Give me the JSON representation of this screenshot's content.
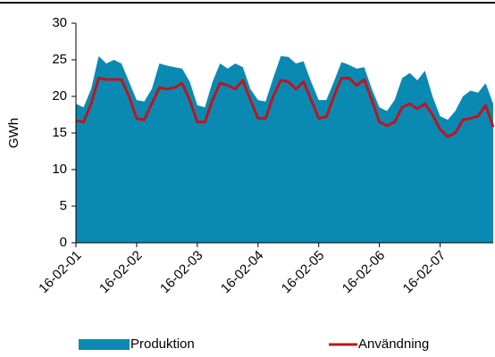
{
  "chart_data": {
    "type": "area-line",
    "ylabel": "GWh",
    "categories": [
      "16-02-01",
      null,
      null,
      null,
      null,
      null,
      null,
      null,
      "16-02-02",
      null,
      null,
      null,
      null,
      null,
      null,
      null,
      "16-02-03",
      null,
      null,
      null,
      null,
      null,
      null,
      null,
      "16-02-04",
      null,
      null,
      null,
      null,
      null,
      null,
      null,
      "16-02-05",
      null,
      null,
      null,
      null,
      null,
      null,
      null,
      "16-02-06",
      null,
      null,
      null,
      null,
      null,
      null,
      null,
      "16-02-07",
      null,
      null,
      null,
      null,
      null,
      null,
      null
    ],
    "series": [
      {
        "name": "Produktion",
        "kind": "area",
        "color": "#0a8ab2",
        "values": [
          19,
          18.5,
          21,
          25.5,
          24.5,
          25,
          24.5,
          22,
          19.5,
          19.3,
          21,
          24.5,
          24.2,
          24,
          23.8,
          22,
          18.8,
          18.5,
          22,
          24.5,
          23.8,
          24.5,
          24,
          21,
          19.5,
          19.3,
          22.5,
          25.5,
          25.4,
          24.5,
          24.8,
          22,
          19.5,
          19.5,
          22,
          24.7,
          24.3,
          23.8,
          24,
          21,
          18.5,
          18,
          19.5,
          22.5,
          23.2,
          22.2,
          23.5,
          20,
          17.3,
          16.8,
          18,
          20,
          20.8,
          20.5,
          21.8,
          19
        ]
      },
      {
        "name": "Användning",
        "kind": "line",
        "color": "#c0141e",
        "values": [
          16.7,
          16.5,
          19,
          22.5,
          22.3,
          22.3,
          22.3,
          20,
          17,
          16.8,
          19,
          21.2,
          21,
          21.2,
          21.8,
          19.5,
          16.5,
          16.5,
          19.5,
          21.8,
          21.5,
          21,
          22.2,
          19.5,
          17,
          17,
          20,
          22.2,
          22,
          21,
          22,
          19.5,
          17,
          17.2,
          20,
          22.5,
          22.5,
          21.5,
          22.3,
          19.5,
          16.5,
          16,
          16.5,
          18.5,
          19,
          18.3,
          19,
          17.5,
          15.5,
          14.5,
          15,
          16.8,
          17,
          17.3,
          18.8,
          15.8
        ]
      }
    ],
    "ylim": [
      0,
      30
    ],
    "yticks": [
      0,
      5,
      10,
      15,
      20,
      25,
      30
    ],
    "legend": "bottom"
  }
}
